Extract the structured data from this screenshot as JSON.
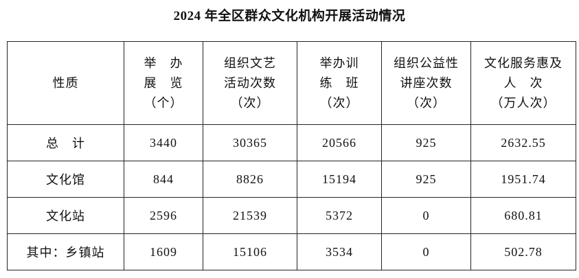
{
  "title": "2024 年全区群众文化机构开展活动情况",
  "table": {
    "header": [
      [
        "性质"
      ],
      [
        "举　办",
        "展　览",
        "（个）"
      ],
      [
        "组织文艺",
        "活动次数",
        "（次）"
      ],
      [
        "举办训",
        "练　班",
        "（次）"
      ],
      [
        "组织公益性",
        "讲座次数",
        "（次）"
      ],
      [
        "文化服务惠及",
        "人　次",
        "（万人次）"
      ]
    ],
    "rows": [
      [
        "总　计",
        3440,
        30365,
        20566,
        925,
        2632.55
      ],
      [
        "文化馆",
        844,
        8826,
        15194,
        925,
        1951.74
      ],
      [
        "文化站",
        2596,
        21539,
        5372,
        0,
        680.81
      ],
      [
        "其中：乡镇站",
        1609,
        15106,
        3534,
        0,
        502.78
      ]
    ]
  }
}
